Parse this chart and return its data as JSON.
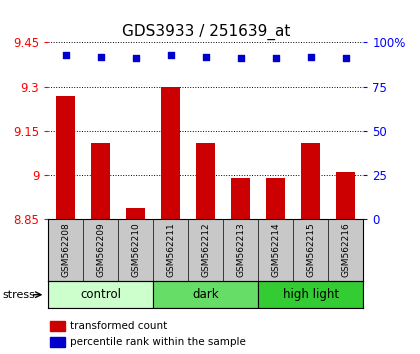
{
  "title": "GDS3933 / 251639_at",
  "samples": [
    "GSM562208",
    "GSM562209",
    "GSM562210",
    "GSM562211",
    "GSM562212",
    "GSM562213",
    "GSM562214",
    "GSM562215",
    "GSM562216"
  ],
  "bar_values": [
    9.27,
    9.11,
    8.89,
    9.3,
    9.11,
    8.99,
    8.99,
    9.11,
    9.01
  ],
  "percentile_values": [
    93,
    92,
    91,
    93,
    92,
    91,
    91,
    92,
    91
  ],
  "ylim_left": [
    8.85,
    9.45
  ],
  "ylim_right": [
    0,
    100
  ],
  "yticks_left": [
    8.85,
    9.0,
    9.15,
    9.3,
    9.45
  ],
  "yticks_right": [
    0,
    25,
    50,
    75,
    100
  ],
  "ytick_labels_left": [
    "8.85",
    "9",
    "9.15",
    "9.3",
    "9.45"
  ],
  "ytick_labels_right": [
    "0",
    "25",
    "50",
    "75",
    "100%"
  ],
  "bar_color": "#cc0000",
  "dot_color": "#0000cc",
  "groups": [
    {
      "label": "control",
      "start": 0,
      "end": 3,
      "color": "#ccffcc"
    },
    {
      "label": "dark",
      "start": 3,
      "end": 6,
      "color": "#66dd66"
    },
    {
      "label": "high light",
      "start": 6,
      "end": 9,
      "color": "#33cc33"
    }
  ],
  "group_row_color": "#c8c8c8",
  "stress_label": "stress",
  "legend_red_label": "transformed count",
  "legend_blue_label": "percentile rank within the sample",
  "background_color": "#ffffff",
  "bar_width": 0.55,
  "title_fontsize": 11,
  "tick_fontsize": 8.5,
  "sample_fontsize": 6.5,
  "group_fontsize": 8.5,
  "legend_fontsize": 7.5
}
